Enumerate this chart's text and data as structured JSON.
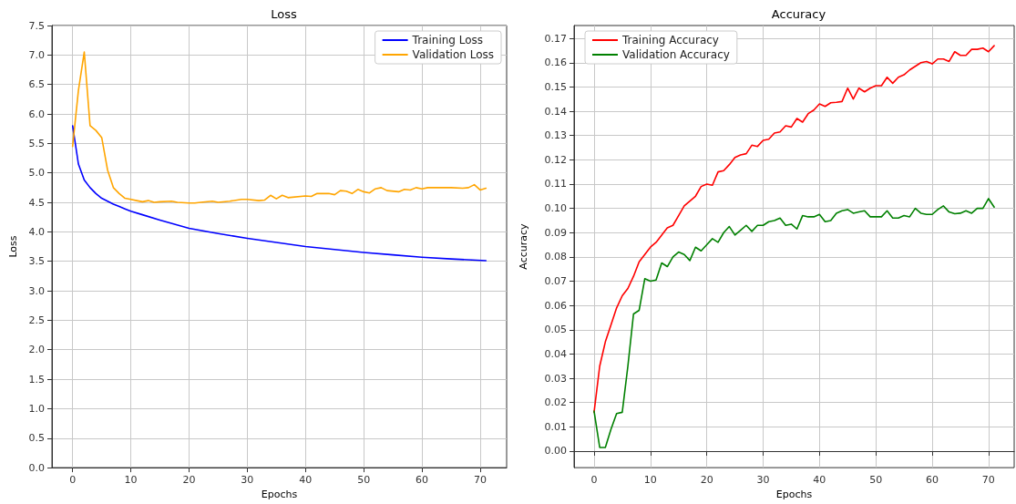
{
  "chart_data": [
    {
      "type": "line",
      "title": "Loss",
      "xlabel": "Epochs",
      "ylabel": "Loss",
      "xlim": [
        -3.55,
        74.55
      ],
      "xticks": [
        0,
        10,
        20,
        30,
        40,
        50,
        60,
        70
      ],
      "ylim": [
        0,
        7.5
      ],
      "yticks": [
        {
          "value": 0,
          "label": "0.0"
        },
        0.5,
        {
          "value": 1,
          "label": "1.0"
        },
        1.5,
        {
          "value": 2,
          "label": "2.0"
        },
        2.5,
        {
          "value": 3,
          "label": "3.0"
        },
        3.5,
        {
          "value": 4,
          "label": "4.0"
        },
        4.5,
        {
          "value": 5,
          "label": "5.0"
        },
        5.5,
        {
          "value": 6,
          "label": "6.0"
        },
        6.5,
        {
          "value": 7,
          "label": "7.0"
        },
        7.5
      ],
      "grid": true,
      "legend": "top right",
      "series": [
        {
          "name": "Training Loss",
          "color": "#0000ff",
          "x": [
            0,
            1,
            2,
            3,
            4,
            5,
            6,
            7,
            8,
            9,
            10,
            12,
            15,
            20,
            25,
            30,
            35,
            40,
            45,
            50,
            55,
            60,
            65,
            71
          ],
          "values": [
            5.8,
            5.15,
            4.88,
            4.75,
            4.65,
            4.57,
            4.52,
            4.47,
            4.43,
            4.39,
            4.35,
            4.29,
            4.2,
            4.06,
            3.97,
            3.89,
            3.82,
            3.75,
            3.7,
            3.65,
            3.61,
            3.57,
            3.54,
            3.51
          ]
        },
        {
          "name": "Validation Loss",
          "color": "#ffa500",
          "x": [
            0,
            1,
            2,
            3,
            4,
            5,
            6,
            7,
            8,
            9,
            10,
            11,
            12,
            13,
            14,
            15,
            17,
            18,
            20,
            21,
            22,
            24,
            25,
            27,
            29,
            30,
            32,
            33,
            34,
            35,
            36,
            37,
            40,
            41,
            42,
            44,
            45,
            46,
            47,
            48,
            49,
            50,
            51,
            52,
            53,
            54,
            56,
            57,
            58,
            59,
            60,
            61,
            65,
            67,
            68,
            69,
            70,
            71
          ],
          "values": [
            5.45,
            6.4,
            7.05,
            5.8,
            5.72,
            5.6,
            5.05,
            4.75,
            4.65,
            4.57,
            4.55,
            4.53,
            4.51,
            4.53,
            4.5,
            4.51,
            4.52,
            4.5,
            4.49,
            4.49,
            4.5,
            4.52,
            4.5,
            4.52,
            4.55,
            4.55,
            4.53,
            4.54,
            4.62,
            4.56,
            4.62,
            4.58,
            4.61,
            4.6,
            4.65,
            4.65,
            4.63,
            4.7,
            4.69,
            4.65,
            4.72,
            4.68,
            4.66,
            4.73,
            4.75,
            4.7,
            4.68,
            4.72,
            4.71,
            4.75,
            4.73,
            4.75,
            4.75,
            4.74,
            4.75,
            4.8,
            4.71,
            4.74
          ]
        }
      ]
    },
    {
      "type": "line",
      "title": "Accuracy",
      "xlabel": "Epochs",
      "ylabel": "Accuracy",
      "xlim": [
        -3.55,
        74.55
      ],
      "xticks": [
        0,
        10,
        20,
        30,
        40,
        50,
        60,
        70
      ],
      "ylim": [
        -0.0068,
        0.1753
      ],
      "yticks": [
        {
          "value": 0,
          "label": "0.00"
        },
        {
          "value": 0.01,
          "label": "0.01"
        },
        {
          "value": 0.02,
          "label": "0.02"
        },
        {
          "value": 0.03,
          "label": "0.03"
        },
        {
          "value": 0.04,
          "label": "0.04"
        },
        {
          "value": 0.05,
          "label": "0.05"
        },
        {
          "value": 0.06,
          "label": "0.06"
        },
        {
          "value": 0.07,
          "label": "0.07"
        },
        {
          "value": 0.08,
          "label": "0.08"
        },
        {
          "value": 0.09,
          "label": "0.09"
        },
        {
          "value": 0.1,
          "label": "0.10"
        },
        {
          "value": 0.11,
          "label": "0.11"
        },
        {
          "value": 0.12,
          "label": "0.12"
        },
        {
          "value": 0.13,
          "label": "0.13"
        },
        {
          "value": 0.14,
          "label": "0.14"
        },
        {
          "value": 0.15,
          "label": "0.15"
        },
        {
          "value": 0.16,
          "label": "0.16"
        },
        {
          "value": 0.17,
          "label": "0.17"
        }
      ],
      "grid": true,
      "legend": "top left",
      "series": [
        {
          "name": "Training Accuracy",
          "color": "#ff0000",
          "x": [
            0,
            1,
            2,
            3,
            4,
            5,
            6,
            7,
            8,
            9,
            10,
            11,
            12,
            13,
            14,
            15,
            16,
            17,
            18,
            19,
            20,
            21,
            22,
            23,
            24,
            25,
            26,
            27,
            28,
            29,
            30,
            31,
            32,
            33,
            34,
            35,
            36,
            37,
            38,
            39,
            40,
            41,
            42,
            43,
            44,
            45,
            46,
            47,
            48,
            49,
            50,
            51,
            52,
            53,
            54,
            55,
            56,
            57,
            58,
            59,
            60,
            61,
            62,
            63,
            64,
            65,
            66,
            67,
            68,
            69,
            70,
            71
          ],
          "values": [
            0.016,
            0.035,
            0.045,
            0.052,
            0.059,
            0.064,
            0.067,
            0.072,
            0.078,
            0.081,
            0.084,
            0.086,
            0.089,
            0.092,
            0.093,
            0.097,
            0.101,
            0.103,
            0.105,
            0.109,
            0.11,
            0.1095,
            0.115,
            0.1155,
            0.118,
            0.121,
            0.122,
            0.1225,
            0.126,
            0.1255,
            0.128,
            0.1285,
            0.131,
            0.1315,
            0.134,
            0.1335,
            0.137,
            0.1355,
            0.139,
            0.1405,
            0.143,
            0.142,
            0.1435,
            0.1437,
            0.144,
            0.1495,
            0.145,
            0.1495,
            0.148,
            0.1495,
            0.1505,
            0.1505,
            0.154,
            0.1515,
            0.154,
            0.155,
            0.157,
            0.1585,
            0.16,
            0.1605,
            0.1595,
            0.1615,
            0.1615,
            0.1605,
            0.1645,
            0.163,
            0.163,
            0.1655,
            0.1655,
            0.166,
            0.1645,
            0.167
          ]
        },
        {
          "name": "Validation Accuracy",
          "color": "#008000",
          "x": [
            0,
            1,
            2,
            3,
            4,
            5,
            6,
            7,
            8,
            9,
            10,
            11,
            12,
            13,
            14,
            15,
            16,
            17,
            18,
            19,
            20,
            21,
            22,
            23,
            24,
            25,
            26,
            27,
            28,
            29,
            30,
            31,
            32,
            33,
            34,
            35,
            36,
            37,
            38,
            39,
            40,
            41,
            42,
            43,
            44,
            45,
            46,
            47,
            48,
            49,
            50,
            51,
            52,
            53,
            54,
            55,
            56,
            57,
            58,
            59,
            60,
            61,
            62,
            63,
            64,
            65,
            66,
            67,
            68,
            69,
            70,
            71
          ],
          "values": [
            0.0165,
            0.0015,
            0.0015,
            0.009,
            0.0155,
            0.016,
            0.035,
            0.0565,
            0.058,
            0.071,
            0.07,
            0.0705,
            0.0775,
            0.076,
            0.08,
            0.082,
            0.081,
            0.0785,
            0.084,
            0.0825,
            0.085,
            0.0875,
            0.086,
            0.09,
            0.0925,
            0.089,
            0.091,
            0.093,
            0.0905,
            0.093,
            0.093,
            0.0945,
            0.095,
            0.096,
            0.093,
            0.0935,
            0.0915,
            0.097,
            0.0965,
            0.0965,
            0.0975,
            0.0945,
            0.095,
            0.098,
            0.099,
            0.0995,
            0.098,
            0.0985,
            0.099,
            0.0965,
            0.0965,
            0.0965,
            0.099,
            0.096,
            0.096,
            0.097,
            0.0965,
            0.1,
            0.098,
            0.0975,
            0.0975,
            0.0995,
            0.101,
            0.0985,
            0.0978,
            0.098,
            0.099,
            0.098,
            0.1,
            0.1,
            0.104,
            0.1005
          ]
        }
      ]
    }
  ]
}
